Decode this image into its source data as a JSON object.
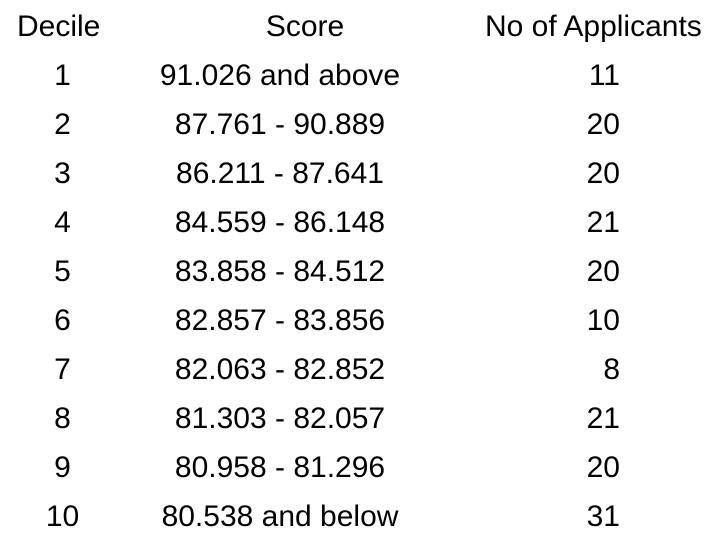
{
  "table": {
    "headers": {
      "decile": "Decile",
      "score": "Score",
      "applicants": "No of Applicants"
    },
    "rows": [
      {
        "decile": "1",
        "score": "91.026 and above",
        "applicants": "11"
      },
      {
        "decile": "2",
        "score": "87.761 - 90.889",
        "applicants": "20"
      },
      {
        "decile": "3",
        "score": "86.211 - 87.641",
        "applicants": "20"
      },
      {
        "decile": "4",
        "score": "84.559 - 86.148",
        "applicants": "21"
      },
      {
        "decile": "5",
        "score": "83.858 - 84.512",
        "applicants": "20"
      },
      {
        "decile": "6",
        "score": "82.857 - 83.856",
        "applicants": "10"
      },
      {
        "decile": "7",
        "score": "82.063 - 82.852",
        "applicants": "8"
      },
      {
        "decile": "8",
        "score": "81.303 - 82.057",
        "applicants": "21"
      },
      {
        "decile": "9",
        "score": "80.958 - 81.296",
        "applicants": "20"
      },
      {
        "decile": "10",
        "score": "80.538 and below",
        "applicants": "31"
      }
    ]
  }
}
